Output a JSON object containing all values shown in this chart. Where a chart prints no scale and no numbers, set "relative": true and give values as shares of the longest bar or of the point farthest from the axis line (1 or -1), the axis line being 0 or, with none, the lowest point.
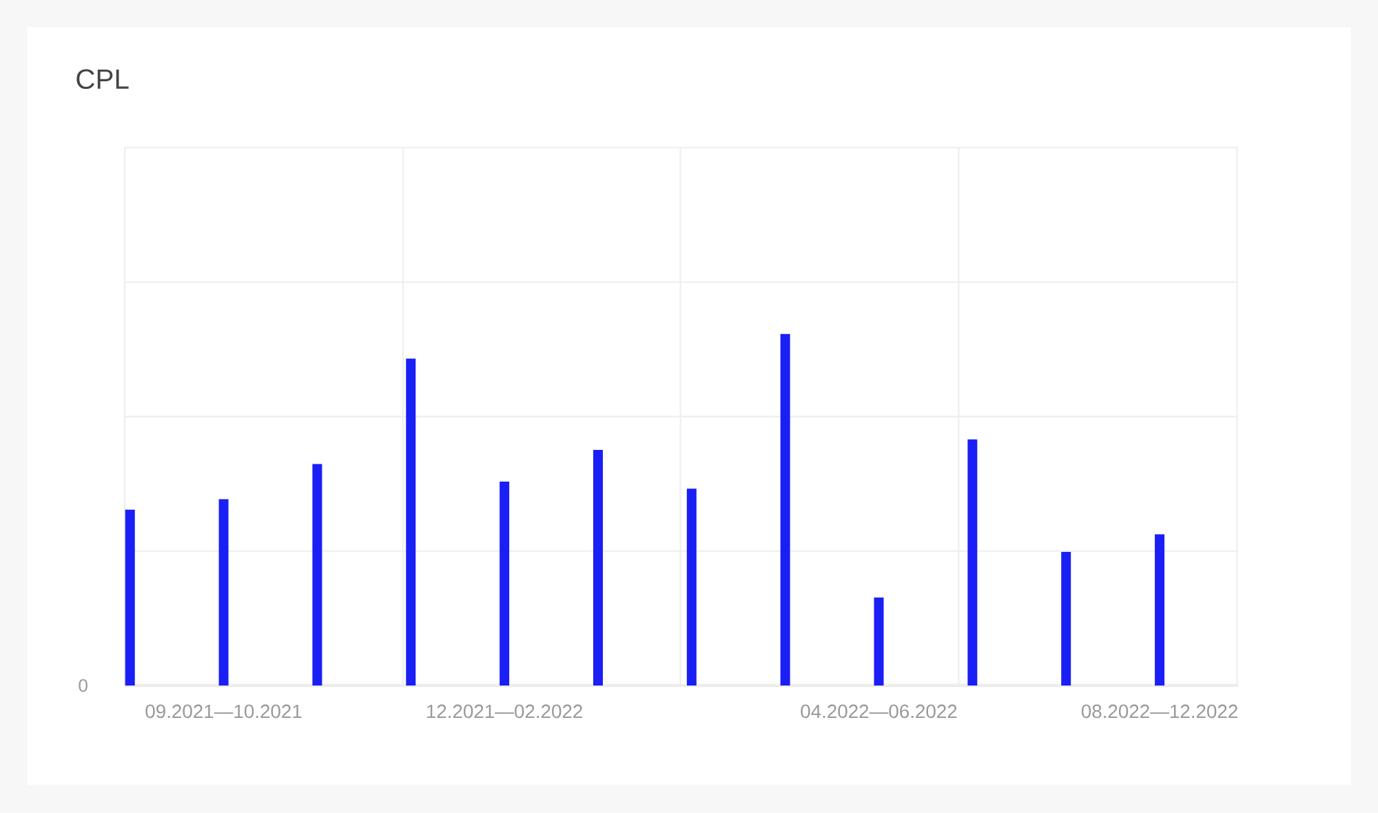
{
  "chart_data": {
    "type": "bar",
    "title": "CPL",
    "categories": [
      null,
      "09.2021—10.2021",
      null,
      null,
      "12.2021—02.2022",
      null,
      null,
      null,
      "04.2022—06.2022",
      null,
      null,
      "08.2022—12.2022"
    ],
    "values": [
      0.5,
      0.53,
      0.63,
      0.93,
      0.58,
      0.67,
      0.56,
      1,
      0.25,
      0.7,
      0.38,
      0.43
    ],
    "color": "#1a1ff5",
    "relative": true,
    "grid": true,
    "annotations": [
      "0"
    ]
  }
}
